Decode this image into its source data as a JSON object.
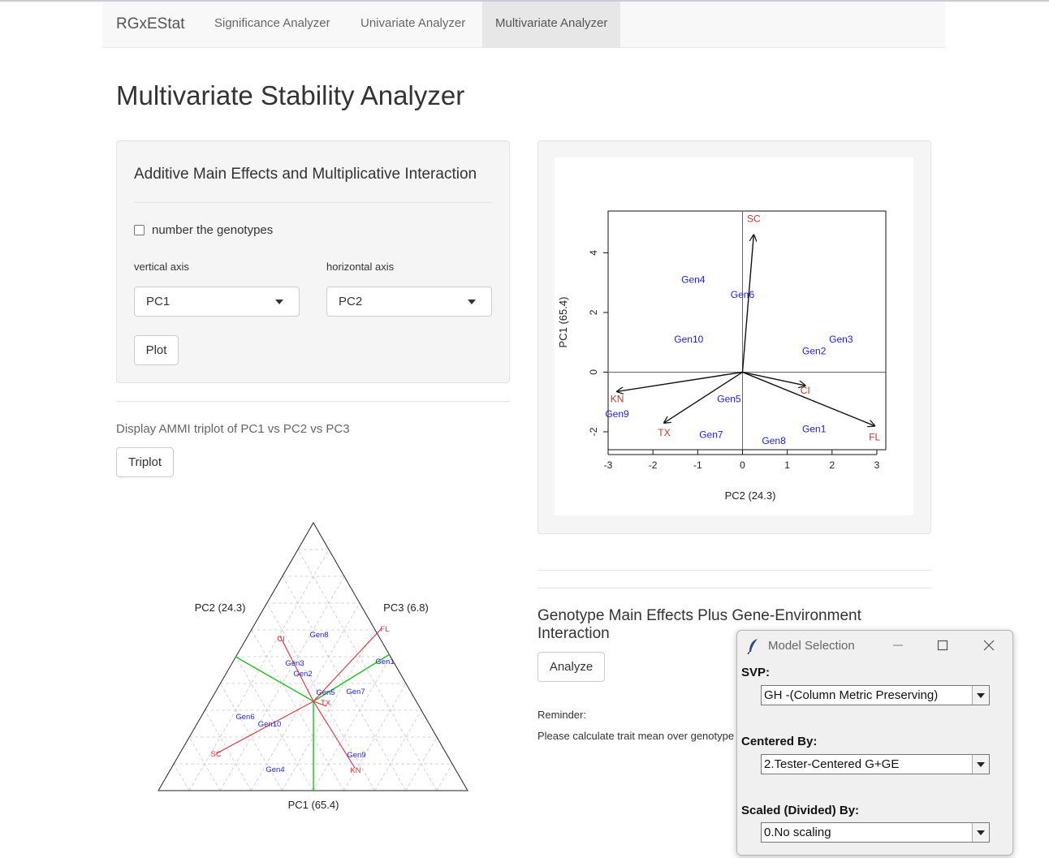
{
  "nav": {
    "brand": "RGxEStat",
    "items": [
      {
        "label": "Significance Analyzer"
      },
      {
        "label": "Univariate Analyzer"
      },
      {
        "label": "Multivariate Analyzer"
      }
    ]
  },
  "page": {
    "title": "Multivariate Stability Analyzer"
  },
  "ammi": {
    "heading": "Additive Main Effects and Multiplicative Interaction",
    "checkbox_label": "number the genotypes",
    "vertical_label": "vertical axis",
    "vertical_value": "PC1",
    "horizontal_label": "horizontal axis",
    "horizontal_value": "PC2",
    "plot_button": "Plot",
    "triplot_text": "Display AMMI triplot of PC1 vs PC2 vs PC3",
    "triplot_button": "Triplot"
  },
  "gge": {
    "heading": "Genotype Main Effects Plus Gene-Environment Interaction",
    "analyze_button": "Analyze",
    "reminder_label": "Reminder:",
    "reminder_text": "Please calculate trait mean over genotype"
  },
  "dialog": {
    "title": "Model Selection",
    "svp_label": "SVP:",
    "svp_value": "GH -(Column Metric Preserving)",
    "centered_label": "Centered By:",
    "centered_value": "2.Tester-Centered G+GE",
    "scaled_label": "Scaled (Divided) By:",
    "scaled_value": "0.No scaling"
  },
  "colors": {
    "genotype": "#1f1fd0",
    "environment": "#c0392b",
    "triplot_env": "#e0303a",
    "triplot_green": "#1fc01f"
  },
  "chart_data": [
    {
      "type": "scatter",
      "title": "",
      "xlabel": "PC2 (24.3)",
      "ylabel": "PC1 (65.4)",
      "xlim": [
        -3.0,
        3.2
      ],
      "ylim": [
        -2.6,
        5.4
      ],
      "xticks": [
        -3,
        -2,
        -1,
        0,
        1,
        2,
        3
      ],
      "yticks": [
        -2,
        0,
        2,
        4
      ],
      "genotypes": [
        {
          "name": "Gen4",
          "x": -1.1,
          "y": 3.1
        },
        {
          "name": "Gen6",
          "x": 0.0,
          "y": 2.6
        },
        {
          "name": "Gen10",
          "x": -1.2,
          "y": 1.1
        },
        {
          "name": "Gen3",
          "x": 2.2,
          "y": 1.1
        },
        {
          "name": "Gen2",
          "x": 1.6,
          "y": 0.7
        },
        {
          "name": "Gen5",
          "x": -0.3,
          "y": -0.9
        },
        {
          "name": "Gen9",
          "x": -2.8,
          "y": -1.4
        },
        {
          "name": "Gen7",
          "x": -0.7,
          "y": -2.1
        },
        {
          "name": "Gen8",
          "x": 0.7,
          "y": -2.3
        },
        {
          "name": "Gen1",
          "x": 1.6,
          "y": -1.9
        }
      ],
      "environments": [
        {
          "name": "SC",
          "x": 0.25,
          "y": 4.6
        },
        {
          "name": "KN",
          "x": -2.8,
          "y": -0.65
        },
        {
          "name": "TX",
          "x": -1.75,
          "y": -1.7
        },
        {
          "name": "CI",
          "x": 1.4,
          "y": -0.45
        },
        {
          "name": "FL",
          "x": 2.95,
          "y": -1.8
        }
      ]
    },
    {
      "type": "scatter",
      "subtype": "ternary",
      "axis_labels": {
        "left": "PC2 (24.3)",
        "right": "PC3 (6.8)",
        "bottom": "PC1 (65.4)"
      },
      "genotypes": [
        "Gen8",
        "Gen3",
        "Gen2",
        "Gen5",
        "Gen7",
        "Gen1",
        "Gen6",
        "Gen10",
        "Gen4",
        "Gen9"
      ],
      "environments": [
        "CI",
        "FL",
        "TX",
        "SC",
        "KN"
      ]
    }
  ]
}
